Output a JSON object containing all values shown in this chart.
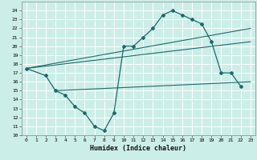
{
  "bg_color": "#cceee8",
  "grid_color": "#aadddd",
  "line_color": "#1a6b6b",
  "xlabel": "Humidex (Indice chaleur)",
  "xlim": [
    -0.5,
    23.5
  ],
  "ylim": [
    10,
    25
  ],
  "xticks": [
    0,
    1,
    2,
    3,
    4,
    5,
    6,
    7,
    8,
    9,
    10,
    11,
    12,
    13,
    14,
    15,
    16,
    17,
    18,
    19,
    20,
    21,
    22,
    23
  ],
  "yticks": [
    10,
    11,
    12,
    13,
    14,
    15,
    16,
    17,
    18,
    19,
    20,
    21,
    22,
    23,
    24
  ],
  "series": [
    {
      "x": [
        0,
        2,
        3,
        4,
        5,
        6,
        7,
        8,
        9,
        10,
        11,
        12,
        13,
        14,
        15,
        16,
        17,
        18,
        19,
        20,
        21,
        22
      ],
      "y": [
        17.5,
        16.7,
        15.0,
        14.5,
        13.2,
        12.5,
        11.0,
        10.5,
        12.5,
        20.0,
        20.0,
        21.0,
        22.0,
        23.5,
        24.0,
        23.5,
        23.0,
        22.5,
        20.5,
        17.0,
        17.0,
        15.5
      ],
      "marker": true
    },
    {
      "x": [
        0,
        23
      ],
      "y": [
        17.5,
        22.0
      ],
      "marker": false
    },
    {
      "x": [
        0,
        23
      ],
      "y": [
        17.5,
        20.5
      ],
      "marker": false
    },
    {
      "x": [
        3,
        23
      ],
      "y": [
        15.0,
        16.0
      ],
      "marker": false
    }
  ]
}
